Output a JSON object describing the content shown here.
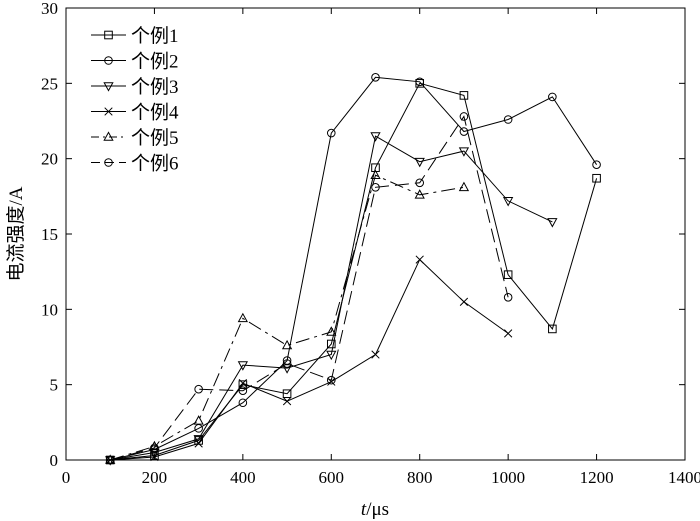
{
  "chart_data": {
    "type": "line",
    "title": "",
    "xlabel_italic": "t",
    "xlabel_rest": "/μs",
    "ylabel": "电流强度/A",
    "xlim": [
      0,
      1400
    ],
    "ylim": [
      0,
      30
    ],
    "xticks": [
      0,
      200,
      400,
      600,
      800,
      1000,
      1200,
      1400
    ],
    "yticks": [
      0,
      5,
      10,
      15,
      20,
      25,
      30
    ],
    "grid": false,
    "legend_position": "top-left",
    "series": [
      {
        "name": "个例1",
        "marker": "square",
        "dash": "solid",
        "x": [
          100,
          200,
          300,
          400,
          500,
          600,
          700,
          800,
          900,
          1000,
          1100,
          1200
        ],
        "y": [
          0,
          0.3,
          1.3,
          5.0,
          4.4,
          7.7,
          19.4,
          25.0,
          24.2,
          12.3,
          8.7,
          18.7
        ]
      },
      {
        "name": "个例2",
        "marker": "circle",
        "dash": "solid",
        "x": [
          100,
          200,
          300,
          400,
          500,
          600,
          700,
          800,
          900,
          1000,
          1100,
          1200
        ],
        "y": [
          0,
          0.7,
          2.1,
          3.8,
          6.6,
          21.7,
          25.4,
          25.1,
          21.8,
          22.6,
          24.1,
          19.6
        ]
      },
      {
        "name": "个例3",
        "marker": "triangle-down",
        "dash": "solid",
        "x": [
          100,
          200,
          300,
          400,
          500,
          600,
          700,
          800,
          900,
          1000,
          1100
        ],
        "y": [
          0,
          0.5,
          1.4,
          6.3,
          6.1,
          7.0,
          21.5,
          19.8,
          20.5,
          17.2,
          15.8
        ]
      },
      {
        "name": "个例4",
        "marker": "x",
        "dash": "solid",
        "x": [
          100,
          200,
          300,
          400,
          500,
          600,
          700,
          800,
          900,
          1000
        ],
        "y": [
          0,
          0.2,
          1.1,
          5.1,
          3.9,
          5.2,
          7.0,
          13.3,
          10.5,
          8.4
        ]
      },
      {
        "name": "个例5",
        "marker": "triangle-up",
        "dash": "dashdot",
        "x": [
          100,
          200,
          300,
          400,
          500,
          600,
          700,
          800,
          900
        ],
        "y": [
          0,
          0.9,
          2.6,
          9.4,
          7.6,
          8.5,
          18.9,
          17.6,
          18.1
        ]
      },
      {
        "name": "个例6",
        "marker": "circle",
        "dash": "longdash",
        "x": [
          100,
          200,
          300,
          400,
          500,
          600,
          700,
          800,
          900,
          1000
        ],
        "y": [
          0,
          0.8,
          4.7,
          4.6,
          6.4,
          5.3,
          18.1,
          18.4,
          22.8,
          10.8
        ]
      }
    ]
  }
}
